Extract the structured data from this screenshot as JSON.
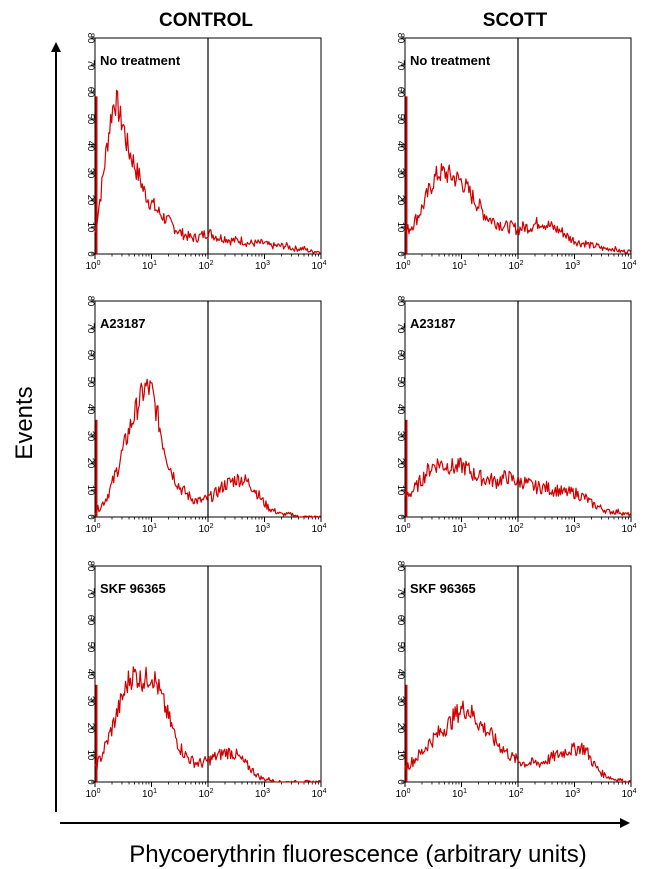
{
  "figure": {
    "column_titles": [
      "CONTROL",
      "SCOTT"
    ],
    "y_axis_label": "Events",
    "x_axis_label": "Phycoerythrin fluorescence (arbitrary units)"
  },
  "colors": {
    "trace": "#d00000",
    "frame": "#000000"
  },
  "chart_data": [
    {
      "type": "line",
      "column": "CONTROL",
      "row_label": "No treatment",
      "xscale": "log",
      "xlim": [
        1,
        10000
      ],
      "ylim": [
        0,
        80
      ],
      "yticks": [
        0,
        10,
        20,
        30,
        40,
        50,
        60,
        70,
        80
      ],
      "xticks": [
        {
          "base": "10",
          "exp": "0"
        },
        {
          "base": "10",
          "exp": "1"
        },
        {
          "base": "10",
          "exp": "2"
        },
        {
          "base": "10",
          "exp": "3"
        },
        {
          "base": "10",
          "exp": "4"
        }
      ],
      "marker_x": 100,
      "series": [
        {
          "x": [
            1.0,
            1.12,
            1.26,
            1.41,
            1.58,
            1.78,
            2.0,
            2.24,
            2.51,
            2.82,
            3.16,
            3.55,
            3.98,
            4.47,
            5.01,
            5.62,
            6.31,
            7.08,
            7.94,
            8.91,
            10.0,
            12.6,
            15.8,
            20.0,
            25.1,
            31.6,
            39.8,
            50.1,
            63.1,
            79.4,
            100,
            126,
            158,
            200,
            251,
            316,
            398,
            501,
            631,
            794,
            1000,
            1260,
            1580,
            2000,
            2510,
            3160,
            3980,
            5010,
            6310,
            7940,
            10000
          ],
          "y": [
            8,
            15,
            22,
            30,
            38,
            46,
            53,
            57,
            55,
            50,
            48,
            42,
            38,
            36,
            33,
            30,
            28,
            24,
            22,
            20,
            19,
            16,
            14,
            12,
            10,
            8,
            7,
            6,
            6,
            7,
            8,
            7,
            6,
            6,
            5,
            5,
            5,
            4,
            4,
            4,
            4,
            3,
            3,
            3,
            3,
            2,
            2,
            2,
            1,
            1,
            1
          ]
        }
      ]
    },
    {
      "type": "line",
      "column": "SCOTT",
      "row_label": "No treatment",
      "xscale": "log",
      "xlim": [
        1,
        10000
      ],
      "ylim": [
        0,
        80
      ],
      "yticks": [
        0,
        10,
        20,
        30,
        40,
        50,
        60,
        70,
        80
      ],
      "xticks": [
        {
          "base": "10",
          "exp": "0"
        },
        {
          "base": "10",
          "exp": "1"
        },
        {
          "base": "10",
          "exp": "2"
        },
        {
          "base": "10",
          "exp": "3"
        },
        {
          "base": "10",
          "exp": "4"
        }
      ],
      "marker_x": 100,
      "series": [
        {
          "x": [
            1.0,
            1.26,
            1.58,
            2.0,
            2.51,
            3.16,
            3.98,
            5.01,
            6.31,
            7.94,
            10.0,
            12.6,
            15.8,
            20.0,
            25.1,
            31.6,
            39.8,
            50.1,
            63.1,
            79.4,
            100,
            126,
            158,
            200,
            251,
            316,
            398,
            501,
            631,
            794,
            1000,
            1260,
            1580,
            2000,
            2510,
            3160,
            3980,
            5010,
            6310,
            7940,
            10000
          ],
          "y": [
            8,
            10,
            13,
            17,
            22,
            27,
            30,
            30,
            29,
            28,
            27,
            24,
            21,
            18,
            15,
            13,
            12,
            11,
            10,
            10,
            9,
            10,
            10,
            11,
            12,
            11,
            10,
            9,
            8,
            6,
            5,
            4,
            4,
            3,
            3,
            2,
            2,
            2,
            1,
            1,
            1
          ]
        }
      ]
    },
    {
      "type": "line",
      "column": "CONTROL",
      "row_label": "A23187",
      "xscale": "log",
      "xlim": [
        1,
        10000
      ],
      "ylim": [
        0,
        80
      ],
      "yticks": [
        0,
        10,
        20,
        30,
        40,
        50,
        60,
        70,
        80
      ],
      "xticks": [
        {
          "base": "10",
          "exp": "0"
        },
        {
          "base": "10",
          "exp": "1"
        },
        {
          "base": "10",
          "exp": "2"
        },
        {
          "base": "10",
          "exp": "3"
        },
        {
          "base": "10",
          "exp": "4"
        }
      ],
      "marker_x": 100,
      "series": [
        {
          "x": [
            1.0,
            1.26,
            1.58,
            2.0,
            2.51,
            3.16,
            3.98,
            5.01,
            6.31,
            7.94,
            10.0,
            12.6,
            15.8,
            20.0,
            25.1,
            31.6,
            39.8,
            50.1,
            63.1,
            79.4,
            100,
            126,
            158,
            200,
            251,
            316,
            398,
            501,
            631,
            794,
            1000,
            1260,
            1580,
            2000,
            2510,
            3160,
            3980,
            5010,
            6310,
            7940,
            10000
          ],
          "y": [
            2,
            4,
            7,
            12,
            18,
            25,
            32,
            38,
            44,
            48,
            47,
            38,
            28,
            20,
            15,
            11,
            9,
            7,
            6,
            6,
            7,
            8,
            10,
            12,
            13,
            14,
            14,
            13,
            11,
            8,
            5,
            3,
            2,
            1,
            1,
            1,
            0,
            0,
            0,
            0,
            0
          ]
        }
      ]
    },
    {
      "type": "line",
      "column": "SCOTT",
      "row_label": "A23187",
      "xscale": "log",
      "xlim": [
        1,
        10000
      ],
      "ylim": [
        0,
        80
      ],
      "yticks": [
        0,
        10,
        20,
        30,
        40,
        50,
        60,
        70,
        80
      ],
      "xticks": [
        {
          "base": "10",
          "exp": "0"
        },
        {
          "base": "10",
          "exp": "1"
        },
        {
          "base": "10",
          "exp": "2"
        },
        {
          "base": "10",
          "exp": "3"
        },
        {
          "base": "10",
          "exp": "4"
        }
      ],
      "marker_x": 100,
      "series": [
        {
          "x": [
            1.0,
            1.26,
            1.58,
            2.0,
            2.51,
            3.16,
            3.98,
            5.01,
            6.31,
            7.94,
            10.0,
            12.6,
            15.8,
            20.0,
            25.1,
            31.6,
            39.8,
            50.1,
            63.1,
            79.4,
            100,
            126,
            158,
            200,
            251,
            316,
            398,
            501,
            631,
            794,
            1000,
            1260,
            1580,
            2000,
            2510,
            3160,
            3980,
            5010,
            6310,
            7940,
            10000
          ],
          "y": [
            8,
            9,
            11,
            14,
            17,
            19,
            20,
            19,
            19,
            18,
            19,
            18,
            16,
            15,
            14,
            14,
            13,
            14,
            15,
            14,
            13,
            13,
            12,
            11,
            11,
            11,
            10,
            10,
            9,
            9,
            9,
            8,
            7,
            5,
            4,
            3,
            2,
            2,
            2,
            1,
            1
          ]
        }
      ]
    },
    {
      "type": "line",
      "column": "CONTROL",
      "row_label": "SKF 96365",
      "xscale": "log",
      "xlim": [
        1,
        10000
      ],
      "ylim": [
        0,
        80
      ],
      "yticks": [
        0,
        10,
        20,
        30,
        40,
        50,
        60,
        70,
        80
      ],
      "xticks": [
        {
          "base": "10",
          "exp": "0"
        },
        {
          "base": "10",
          "exp": "1"
        },
        {
          "base": "10",
          "exp": "2"
        },
        {
          "base": "10",
          "exp": "3"
        },
        {
          "base": "10",
          "exp": "4"
        }
      ],
      "marker_x": 100,
      "series": [
        {
          "x": [
            1.0,
            1.26,
            1.58,
            2.0,
            2.51,
            3.16,
            3.98,
            5.01,
            6.31,
            7.94,
            10.0,
            12.6,
            15.8,
            20.0,
            25.1,
            31.6,
            39.8,
            50.1,
            63.1,
            79.4,
            100,
            126,
            158,
            200,
            251,
            316,
            398,
            501,
            631,
            794,
            1000,
            1260,
            1580,
            2000,
            2510,
            3160,
            3980,
            5010,
            6310,
            7940,
            10000
          ],
          "y": [
            5,
            9,
            14,
            20,
            26,
            32,
            38,
            40,
            38,
            38,
            40,
            36,
            30,
            24,
            18,
            13,
            10,
            8,
            7,
            7,
            8,
            9,
            10,
            11,
            11,
            10,
            8,
            6,
            4,
            2,
            1,
            1,
            0,
            0,
            0,
            0,
            0,
            0,
            0,
            0,
            0
          ]
        }
      ]
    },
    {
      "type": "line",
      "column": "SCOTT",
      "row_label": "SKF 96365",
      "xscale": "log",
      "xlim": [
        1,
        10000
      ],
      "ylim": [
        0,
        80
      ],
      "yticks": [
        0,
        10,
        20,
        30,
        40,
        50,
        60,
        70,
        80
      ],
      "xticks": [
        {
          "base": "10",
          "exp": "0"
        },
        {
          "base": "10",
          "exp": "1"
        },
        {
          "base": "10",
          "exp": "2"
        },
        {
          "base": "10",
          "exp": "3"
        },
        {
          "base": "10",
          "exp": "4"
        }
      ],
      "marker_x": 100,
      "series": [
        {
          "x": [
            1.0,
            1.26,
            1.58,
            2.0,
            2.51,
            3.16,
            3.98,
            5.01,
            6.31,
            7.94,
            10.0,
            12.6,
            15.8,
            20.0,
            25.1,
            31.6,
            39.8,
            50.1,
            63.1,
            79.4,
            100,
            126,
            158,
            200,
            251,
            316,
            398,
            501,
            631,
            794,
            1000,
            1260,
            1580,
            2000,
            2510,
            3160,
            3980,
            5010,
            6310,
            7940,
            10000
          ],
          "y": [
            5,
            7,
            9,
            11,
            14,
            16,
            18,
            20,
            22,
            25,
            27,
            27,
            25,
            22,
            20,
            18,
            15,
            13,
            11,
            9,
            8,
            7,
            7,
            7,
            7,
            8,
            9,
            10,
            11,
            12,
            12,
            13,
            12,
            8,
            5,
            3,
            2,
            1,
            1,
            0,
            0
          ]
        }
      ]
    }
  ]
}
